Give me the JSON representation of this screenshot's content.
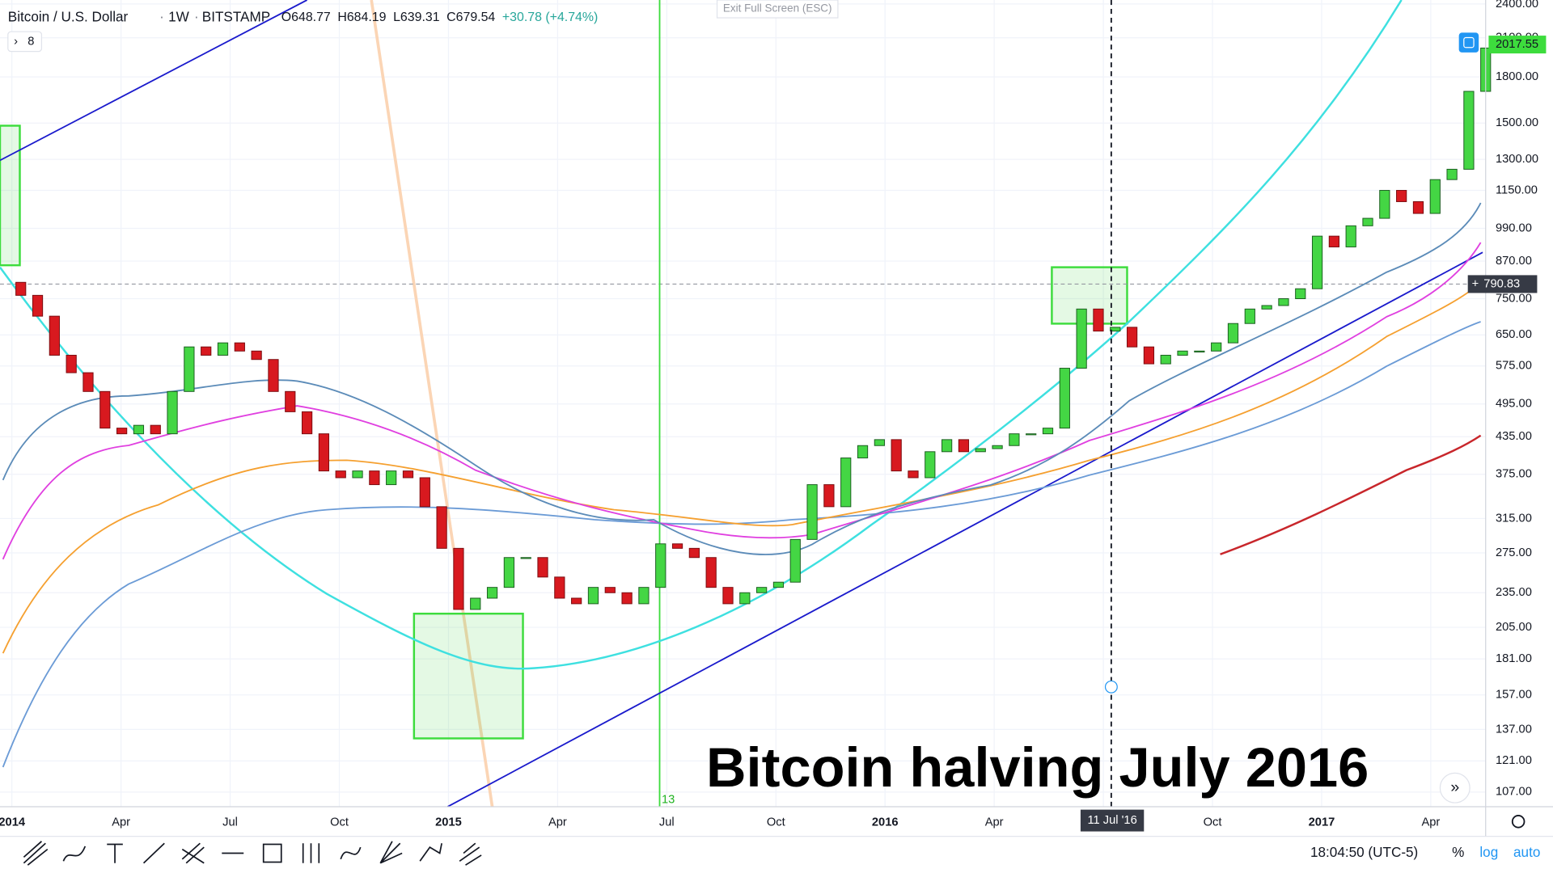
{
  "header": {
    "symbol": "Bitcoin / U.S. Dollar",
    "interval": "1W",
    "exchange": "BITSTAMP",
    "ohlc": [
      "O648.77",
      "H684.19",
      "L639.31",
      "C679.54",
      "+30.78 (+4.74%)"
    ]
  },
  "indicators_count": "8",
  "exit_button": "Exit Full Screen (ESC)",
  "price_axis": {
    "log": true,
    "ylim": [
      101,
      2438
    ],
    "ticks": [
      {
        "value": 2400,
        "label": "2400.00"
      },
      {
        "value": 2100,
        "label": "2100.00"
      },
      {
        "value": 1800,
        "label": "1800.00"
      },
      {
        "value": 1500,
        "label": "1500.00"
      },
      {
        "value": 1300,
        "label": "1300.00"
      },
      {
        "value": 1150,
        "label": "1150.00"
      },
      {
        "value": 990,
        "label": "990.00"
      },
      {
        "value": 870,
        "label": "870.00"
      },
      {
        "value": 750,
        "label": "750.00"
      },
      {
        "value": 650,
        "label": "650.00"
      },
      {
        "value": 575,
        "label": "575.00"
      },
      {
        "value": 495,
        "label": "495.00"
      },
      {
        "value": 435,
        "label": "435.00"
      },
      {
        "value": 375,
        "label": "375.00"
      },
      {
        "value": 315,
        "label": "315.00"
      },
      {
        "value": 275,
        "label": "275.00"
      },
      {
        "value": 235,
        "label": "235.00"
      },
      {
        "value": 205,
        "label": "205.00"
      },
      {
        "value": 181,
        "label": "181.00"
      },
      {
        "value": 157,
        "label": "157.00"
      },
      {
        "value": 137,
        "label": "137.00"
      },
      {
        "value": 121,
        "label": "121.00"
      },
      {
        "value": 107,
        "label": "107.00"
      }
    ]
  },
  "time_axis": {
    "labels": [
      "2014",
      "Apr",
      "Jul",
      "Oct",
      "2015",
      "Apr",
      "Jul",
      "Oct",
      "2016",
      "Apr",
      null,
      "Oct",
      "2017",
      "Apr"
    ]
  },
  "crosshair": {
    "price": "790.83",
    "date": "11 Jul '16"
  },
  "last_price": "2017.55",
  "vertical_line_label": "13",
  "annotation": "Bitcoin halving July 2016",
  "candles": {
    "up_color": "#44d644",
    "down_color": "#d8191f",
    "closes": [
      800,
      760,
      700,
      600,
      560,
      520,
      450,
      440,
      455,
      440,
      520,
      620,
      600,
      630,
      610,
      590,
      520,
      480,
      440,
      380,
      370,
      380,
      360,
      380,
      370,
      330,
      280,
      220,
      230,
      240,
      270,
      270,
      250,
      230,
      225,
      240,
      235,
      225,
      240,
      285,
      280,
      270,
      240,
      225,
      235,
      240,
      245,
      290,
      360,
      330,
      400,
      420,
      430,
      380,
      370,
      410,
      430,
      410,
      415,
      420,
      440,
      440,
      450,
      570,
      720,
      660,
      670,
      620,
      580,
      600,
      610,
      610,
      630,
      680,
      720,
      730,
      750,
      780,
      960,
      920,
      1000,
      1030,
      1150,
      1100,
      1050,
      1200,
      1250,
      1700,
      2017
    ]
  },
  "status": {
    "time": "18:04:50 (UTC-5)",
    "percent": "%",
    "log": "log",
    "auto": "auto"
  }
}
